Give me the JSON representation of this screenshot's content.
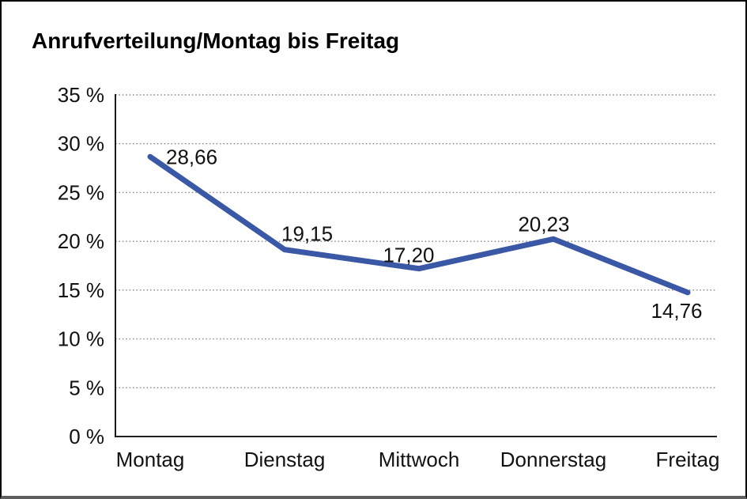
{
  "window": {
    "title": "Anrufverteilung/Montag bis Freitag"
  },
  "chart_data": {
    "type": "line",
    "title": "Anrufverteilung/Montag bis Freitag",
    "categories": [
      "Montag",
      "Dienstag",
      "Mittwoch",
      "Donnerstag",
      "Freitag"
    ],
    "values": [
      28.66,
      19.15,
      17.2,
      20.23,
      14.76
    ],
    "value_labels": [
      "28,66",
      "19,15",
      "17,20",
      "20,23",
      "14,76"
    ],
    "xlabel": "",
    "ylabel": "",
    "ylim": [
      0,
      35
    ],
    "y_ticks": [
      0,
      5,
      10,
      15,
      20,
      25,
      30,
      35
    ],
    "y_tick_labels": [
      "0 %",
      "5 %",
      "10 %",
      "15 %",
      "20 %",
      "25 %",
      "30 %",
      "35 %"
    ],
    "grid": "horizontal-dotted",
    "legend_position": "none",
    "colors": {
      "line": "#3A58A5",
      "gridline": "#8a8a8a",
      "axis": "#000000",
      "text": "#111111"
    }
  }
}
